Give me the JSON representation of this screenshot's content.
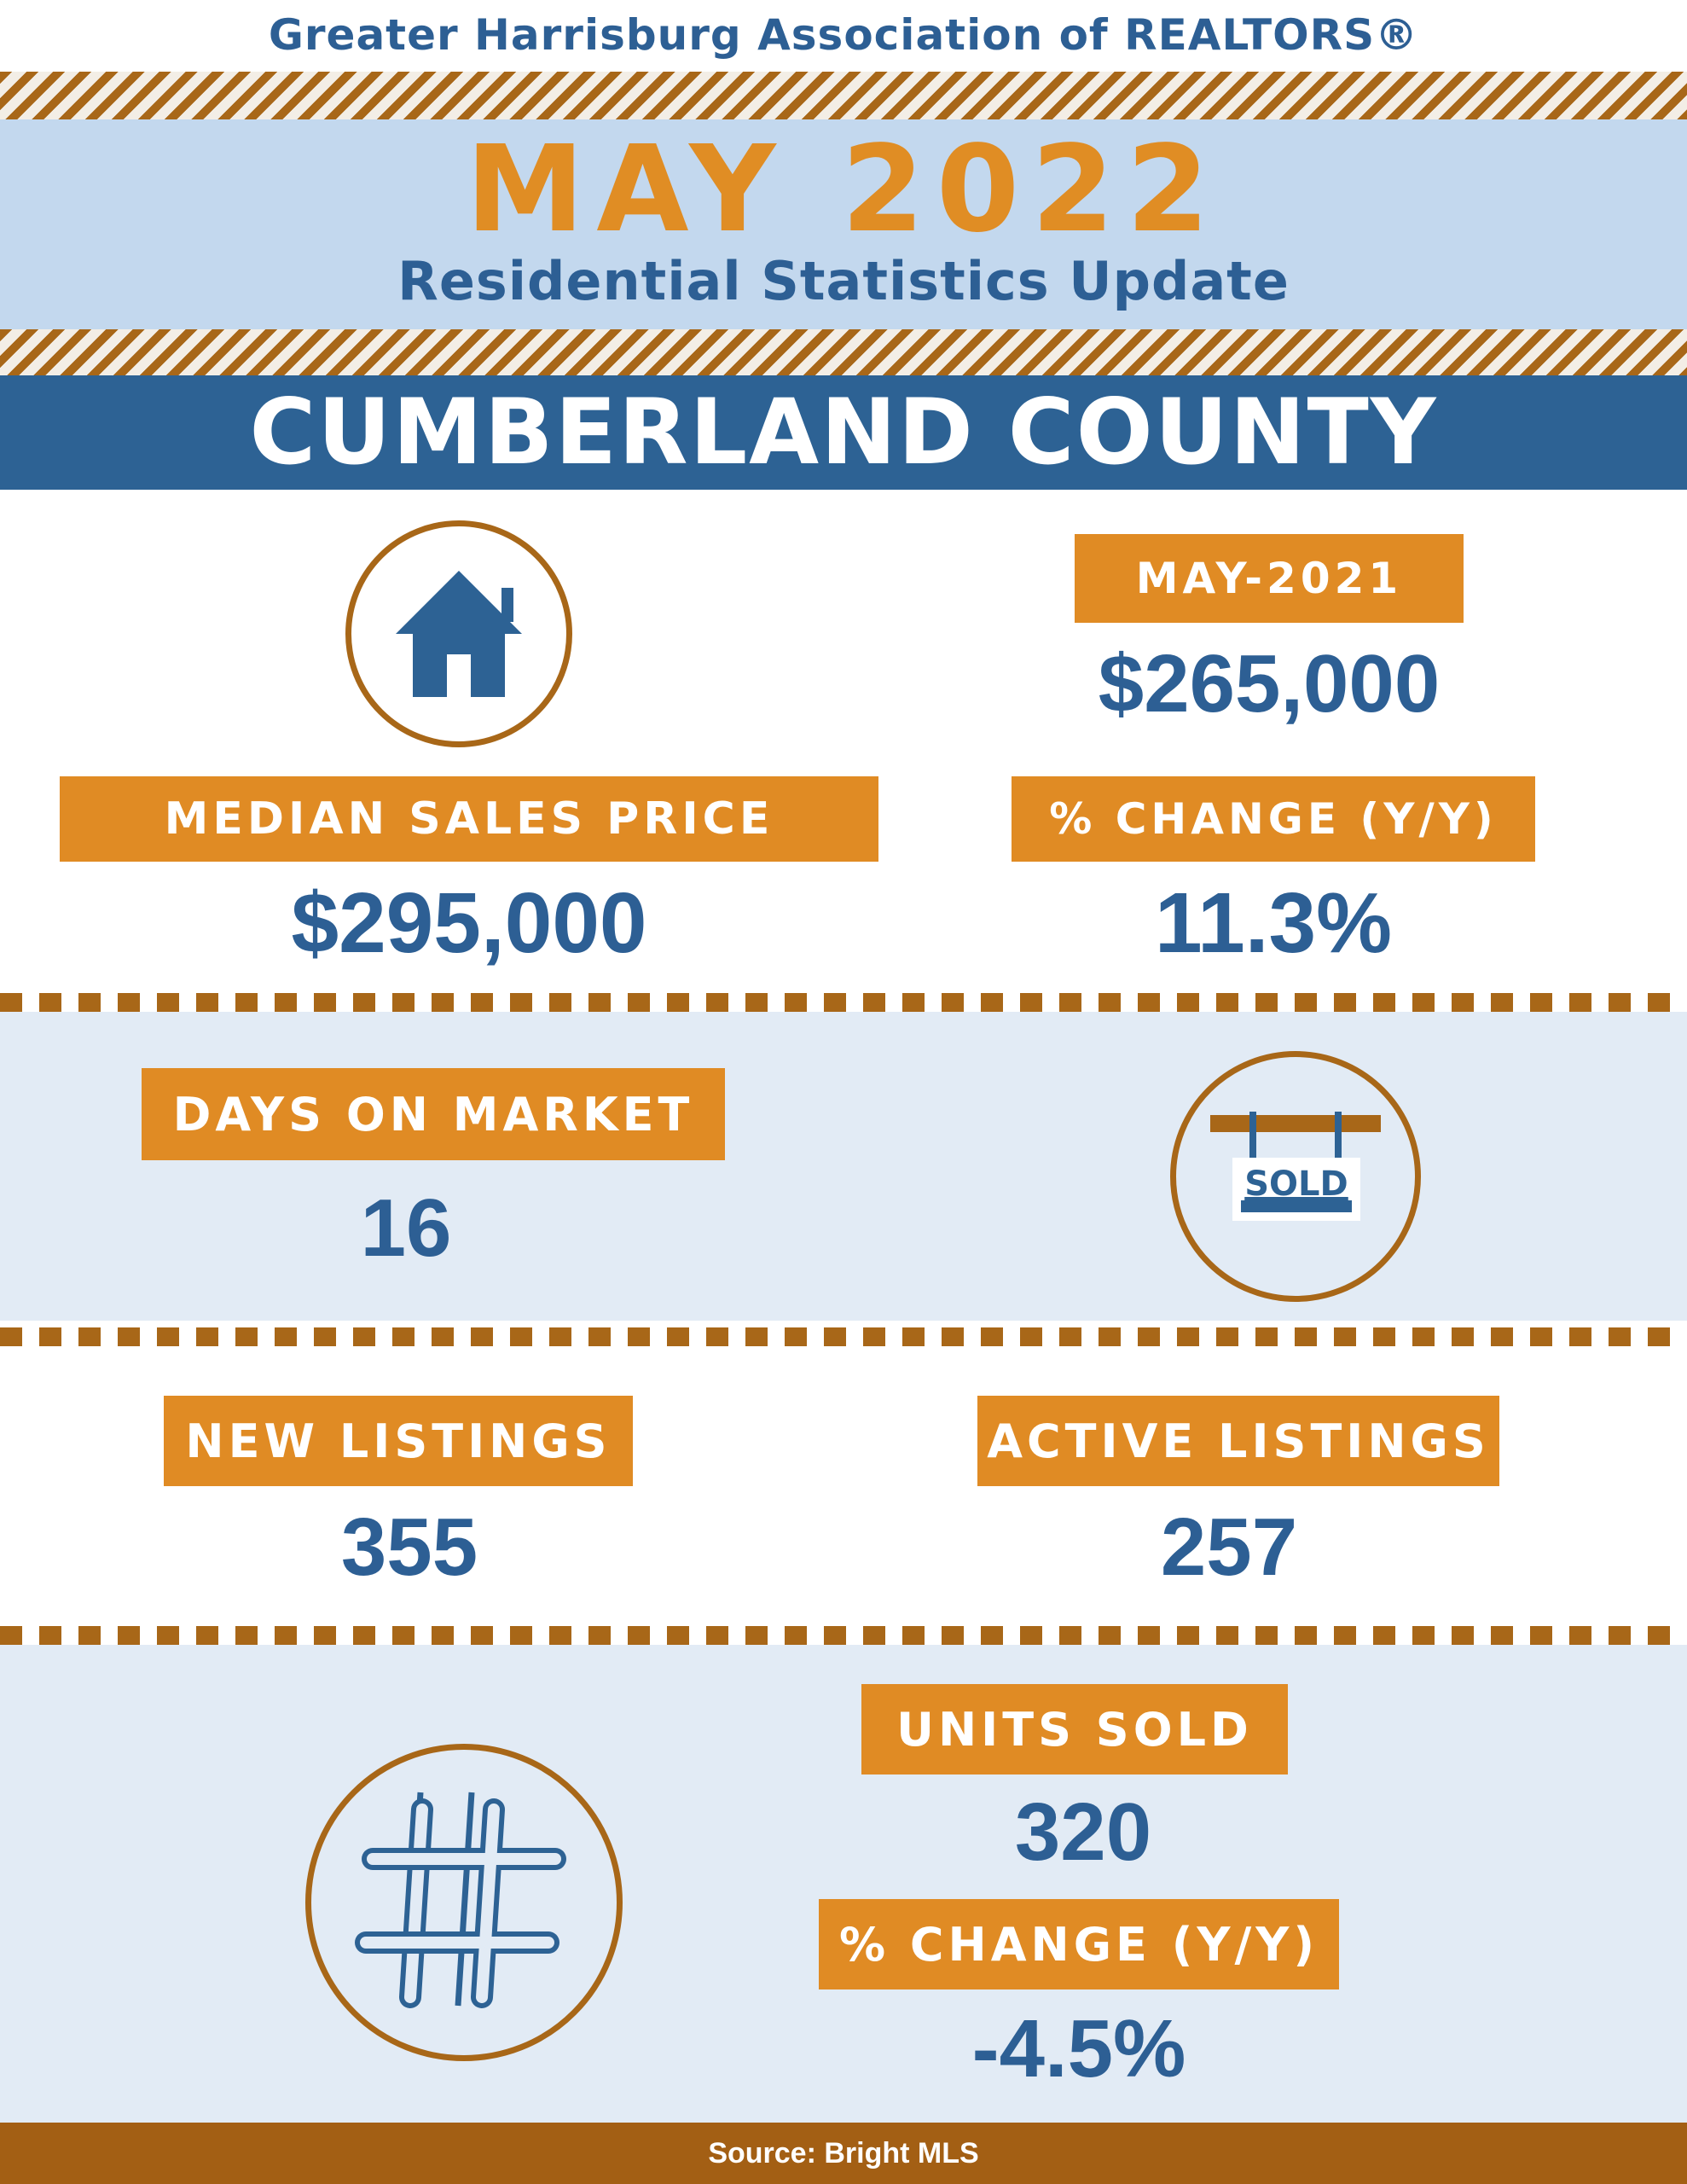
{
  "header": {
    "organization": "Greater Harrisburg Association of REALTORS®",
    "month_title": "MAY 2022",
    "subtitle": "Residential Statistics Update"
  },
  "county": "CUMBERLAND COUNTY",
  "median": {
    "label": "MEDIAN SALES PRICE",
    "value": "$295,000",
    "prior_label": "MAY-2021",
    "prior_value": "$265,000",
    "change_label": "% CHANGE (Y/Y)",
    "change_value": "11.3%"
  },
  "days_on_market": {
    "label": "DAYS ON MARKET",
    "value": "16",
    "sign_text": "SOLD"
  },
  "listings": {
    "new_label": "NEW LISTINGS",
    "new_value": "355",
    "active_label": "ACTIVE LISTINGS",
    "active_value": "257"
  },
  "units": {
    "label": "UNITS SOLD",
    "value": "320",
    "change_label": "% CHANGE (Y/Y)",
    "change_value": "-4.5%"
  },
  "footer": {
    "source": "Source: Bright MLS"
  },
  "icons": [
    "house-icon",
    "sold-sign-icon",
    "hashtag-icon"
  ],
  "colors": {
    "blue": "#2d5f94",
    "orange": "#e08b24",
    "brown": "#a86718",
    "light_blue": "#c3d8ee",
    "tint": "#e2ebf5"
  }
}
